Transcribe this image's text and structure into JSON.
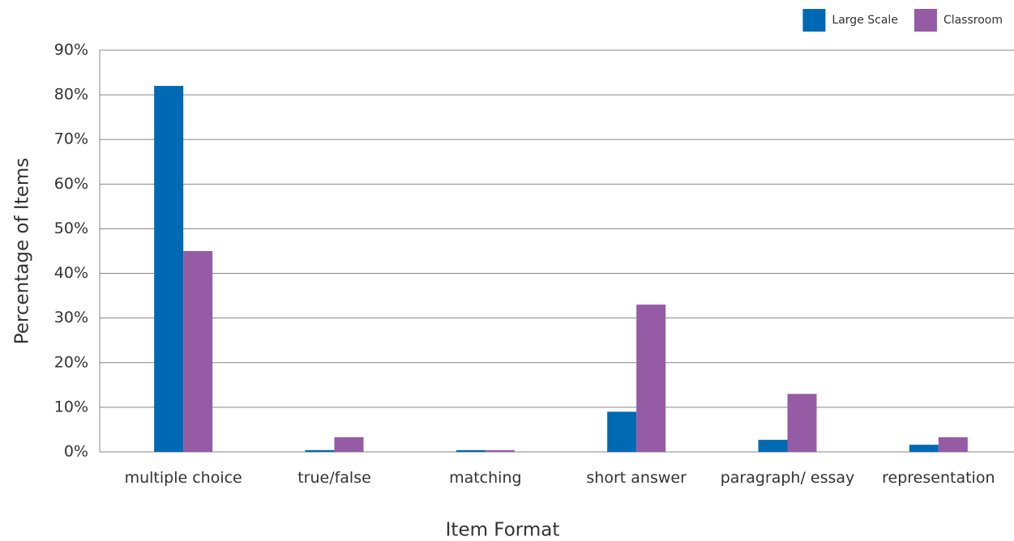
{
  "chart_data": {
    "type": "bar",
    "x_label": "Item Format",
    "y_label": "Percentage of Items",
    "categories": [
      "multiple choice",
      "true/false",
      "matching",
      "short answer",
      "paragraph/ essay",
      "representation"
    ],
    "series": [
      {
        "name": "Large Scale",
        "color": "#0069b4",
        "values": [
          82,
          0.4,
          0.4,
          9,
          2.7,
          1.6
        ]
      },
      {
        "name": "Classroom",
        "color": "#955ba5",
        "values": [
          45,
          3.3,
          0.4,
          33,
          13,
          3.3
        ]
      }
    ],
    "ylim": [
      0,
      90
    ],
    "yticks": [
      {
        "value": 0,
        "label": "0%"
      },
      {
        "value": 10,
        "label": "10%"
      },
      {
        "value": 20,
        "label": "20%"
      },
      {
        "value": 30,
        "label": "30%"
      },
      {
        "value": 40,
        "label": "40%"
      },
      {
        "value": 50,
        "label": "50%"
      },
      {
        "value": 60,
        "label": "60%"
      },
      {
        "value": 70,
        "label": "70%"
      },
      {
        "value": 80,
        "label": "80%"
      },
      {
        "value": 90,
        "label": "90%"
      }
    ],
    "grid": true,
    "legend": "upper right"
  }
}
